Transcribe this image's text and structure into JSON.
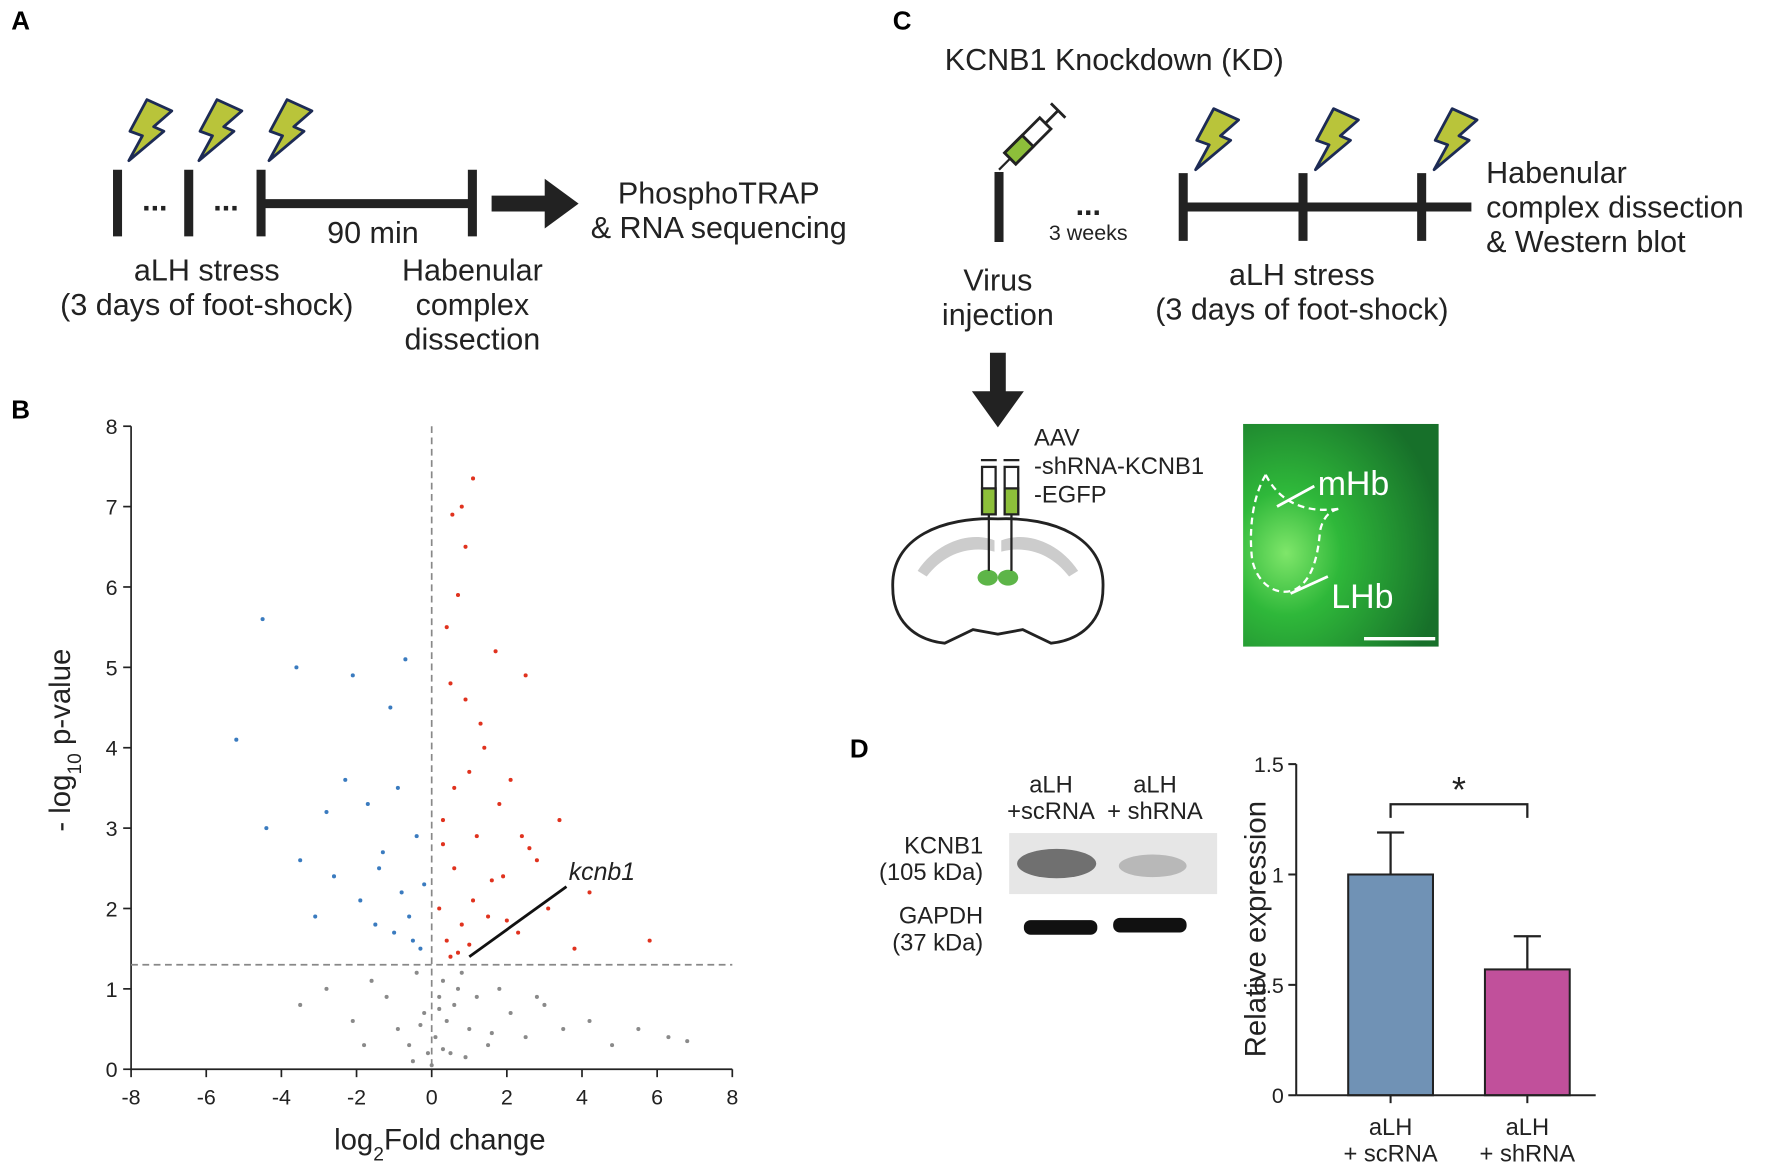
{
  "panel_labels": [
    "A",
    "B",
    "C",
    "D"
  ],
  "panel_a": {
    "dots": [
      "...",
      "..."
    ],
    "interval": "90 min",
    "stress": "aLH stress\n(3 days of foot-shock)",
    "dissection": "Habenular\ncomplex\ndissection",
    "outcome": "PhosphoTRAP\n& RNA sequencing"
  },
  "panel_c": {
    "title": "KCNB1 Knockdown (KD)",
    "dots": "...",
    "wait": "3 weeks",
    "injection": "Virus\ninjection",
    "stress": "aLH stress\n(3 days of foot-shock)",
    "outcome": "Habenular\ncomplex dissection\n& Western blot",
    "virus": "AAV\n-shRNA-KCNB1\n-EGFP",
    "regions": [
      "mHb",
      "LHb"
    ]
  },
  "western_blot": {
    "lanes": [
      "aLH\n+scRNA",
      "aLH\n+ shRNA"
    ],
    "proteins": [
      "KCNB1\n(105 kDa)",
      "GAPDH\n(37 kDa)"
    ]
  },
  "chart_data": [
    {
      "type": "scatter",
      "xlabel": [
        "log",
        "2",
        "Fold change"
      ],
      "ylabel": [
        "- log",
        "10",
        " p-value"
      ],
      "xlim": [
        -8,
        8
      ],
      "xticks": [
        -8,
        -6,
        -4,
        -2,
        0,
        2,
        4,
        6,
        8
      ],
      "ylim": [
        0,
        8
      ],
      "yticks": [
        0,
        1,
        2,
        3,
        4,
        5,
        6,
        7,
        8
      ],
      "vline": 0,
      "hline": 1.3,
      "annotation": {
        "text": "kcnb1",
        "x": 1.0,
        "y": 1.4
      },
      "series": [
        {
          "color": "#8a8a8a",
          "x": [
            -3.5,
            -2.8,
            -2.1,
            -1.6,
            -1.2,
            -0.9,
            -0.6,
            -0.4,
            -0.2,
            -0.1,
            0,
            0.1,
            0.2,
            0.3,
            0.4,
            0.5,
            0.6,
            0.8,
            1.0,
            1.2,
            1.5,
            1.8,
            2.1,
            2.5,
            3.0,
            3.5,
            4.2,
            4.8,
            5.5,
            6.3,
            6.8,
            -0.5,
            0.3,
            0.9,
            1.6,
            2.8,
            -1.8,
            -0.3,
            0.7,
            0.2
          ],
          "y": [
            0.8,
            1.0,
            0.6,
            1.1,
            0.9,
            0.5,
            0.3,
            1.2,
            0.7,
            0.2,
            0.05,
            0.4,
            0.9,
            1.1,
            0.6,
            0.2,
            0.8,
            1.2,
            0.5,
            0.9,
            0.3,
            1.0,
            0.7,
            0.4,
            0.8,
            0.5,
            0.6,
            0.3,
            0.5,
            0.4,
            0.35,
            0.1,
            0.25,
            0.15,
            0.45,
            0.9,
            0.3,
            0.55,
            1.0,
            0.75
          ]
        },
        {
          "color": "#3a7bbf",
          "x": [
            -4.5,
            -4.4,
            -3.6,
            -3.5,
            -2.8,
            -2.6,
            -2.1,
            -1.9,
            -1.7,
            -1.5,
            -1.3,
            -1.1,
            -0.9,
            -0.8,
            -0.6,
            -0.5,
            -0.4,
            -0.3,
            -0.2,
            -0.7,
            -1.0,
            -2.3,
            -3.1,
            -5.2,
            -1.4
          ],
          "y": [
            5.6,
            3.0,
            5.0,
            2.6,
            3.2,
            2.4,
            4.9,
            2.1,
            3.3,
            1.8,
            2.7,
            4.5,
            3.5,
            2.2,
            1.9,
            1.6,
            2.9,
            1.5,
            2.3,
            5.1,
            1.7,
            3.6,
            1.9,
            4.1,
            2.5
          ]
        },
        {
          "color": "#e0321e",
          "x": [
            0.2,
            0.3,
            0.4,
            0.5,
            0.6,
            0.7,
            0.8,
            0.9,
            1.0,
            1.1,
            1.2,
            1.3,
            1.5,
            1.7,
            1.9,
            2.1,
            2.3,
            2.5,
            2.8,
            3.1,
            3.4,
            3.8,
            4.2,
            5.8,
            0.5,
            0.8,
            1.1,
            0.6,
            0.4,
            0.3,
            1.4,
            2.4,
            1.8,
            0.7,
            1.0,
            2.0,
            2.6,
            0.9,
            0.55,
            1.6
          ],
          "y": [
            2.0,
            3.1,
            1.6,
            4.8,
            2.5,
            5.9,
            1.8,
            6.5,
            3.7,
            7.35,
            2.9,
            4.3,
            1.9,
            5.2,
            2.4,
            3.6,
            1.7,
            4.9,
            2.6,
            2.0,
            3.1,
            1.5,
            2.2,
            1.6,
            1.4,
            7.0,
            2.1,
            3.5,
            5.5,
            2.8,
            4.0,
            2.9,
            3.3,
            1.45,
            1.55,
            1.85,
            2.75,
            4.6,
            6.9,
            2.35
          ]
        }
      ]
    },
    {
      "type": "bar",
      "categories": [
        "aLH\n+ scRNA",
        "aLH\n+ shRNA"
      ],
      "values": [
        1.0,
        0.57
      ],
      "errors": [
        0.19,
        0.15
      ],
      "colors": [
        "#7092b5",
        "#c1509b"
      ],
      "ylabel": "Relative expression",
      "ylim": [
        0,
        1.5
      ],
      "yticks": [
        0,
        0.5,
        1,
        1.5
      ],
      "significance": "*"
    }
  ]
}
